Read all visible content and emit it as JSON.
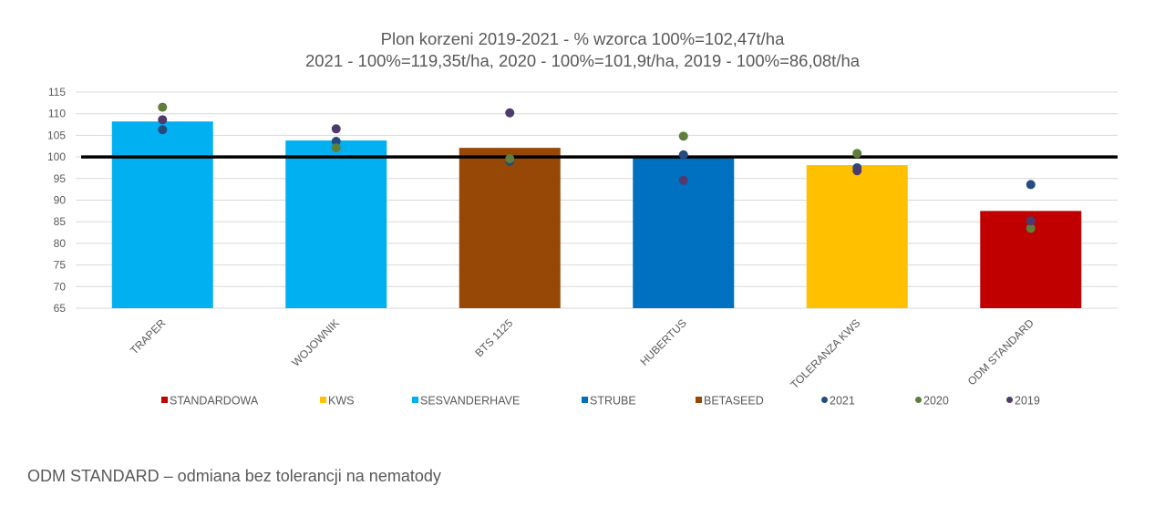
{
  "chart_data": {
    "type": "bar",
    "title_line1": "Plon korzeni 2019-2021 - % wzorca 100%=102,47t/ha",
    "title_line2": "2021 - 100%=119,35t/ha, 2020 - 100%=101,9t/ha, 2019 - 100%=86,08t/ha",
    "categories": [
      "TRAPER",
      "WOJOWNIK",
      "BTS 1125",
      "HUBERTUS",
      "TOLERANZA KWS",
      "ODM STANDARD"
    ],
    "ylim": [
      65,
      115
    ],
    "yticks": [
      65,
      70,
      75,
      80,
      85,
      90,
      95,
      100,
      105,
      110,
      115
    ],
    "grid": true,
    "reference_line": 100,
    "bars": {
      "values": [
        108.2,
        103.8,
        102.1,
        100.2,
        98.1,
        87.5
      ],
      "group": [
        "SESVANDERHAVE",
        "SESVANDERHAVE",
        "BETASEED",
        "STRUBE",
        "KWS",
        "STANDARDOWA"
      ]
    },
    "groups": [
      {
        "name": "STANDARDOWA",
        "color": "#C00000"
      },
      {
        "name": "KWS",
        "color": "#FFC000"
      },
      {
        "name": "SESVANDERHAVE",
        "color": "#00B0F0"
      },
      {
        "name": "STRUBE",
        "color": "#0070C0"
      },
      {
        "name": "BETASEED",
        "color": "#974706"
      }
    ],
    "series": [
      {
        "name": "2021",
        "color": "#254C7F",
        "values": [
          106.3,
          103.6,
          99.0,
          100.5,
          97.5,
          93.6
        ]
      },
      {
        "name": "2020",
        "color": "#5E7E3A",
        "values": [
          111.5,
          102.1,
          99.6,
          104.8,
          100.8,
          83.5
        ]
      },
      {
        "name": "2019",
        "color": "#4E3A6E",
        "values": [
          108.6,
          106.5,
          110.2,
          94.6,
          96.8,
          85.2
        ]
      }
    ],
    "legend_position": "bottom"
  },
  "footnote": "ODM STANDARD – odmiana bez tolerancji na nematody"
}
